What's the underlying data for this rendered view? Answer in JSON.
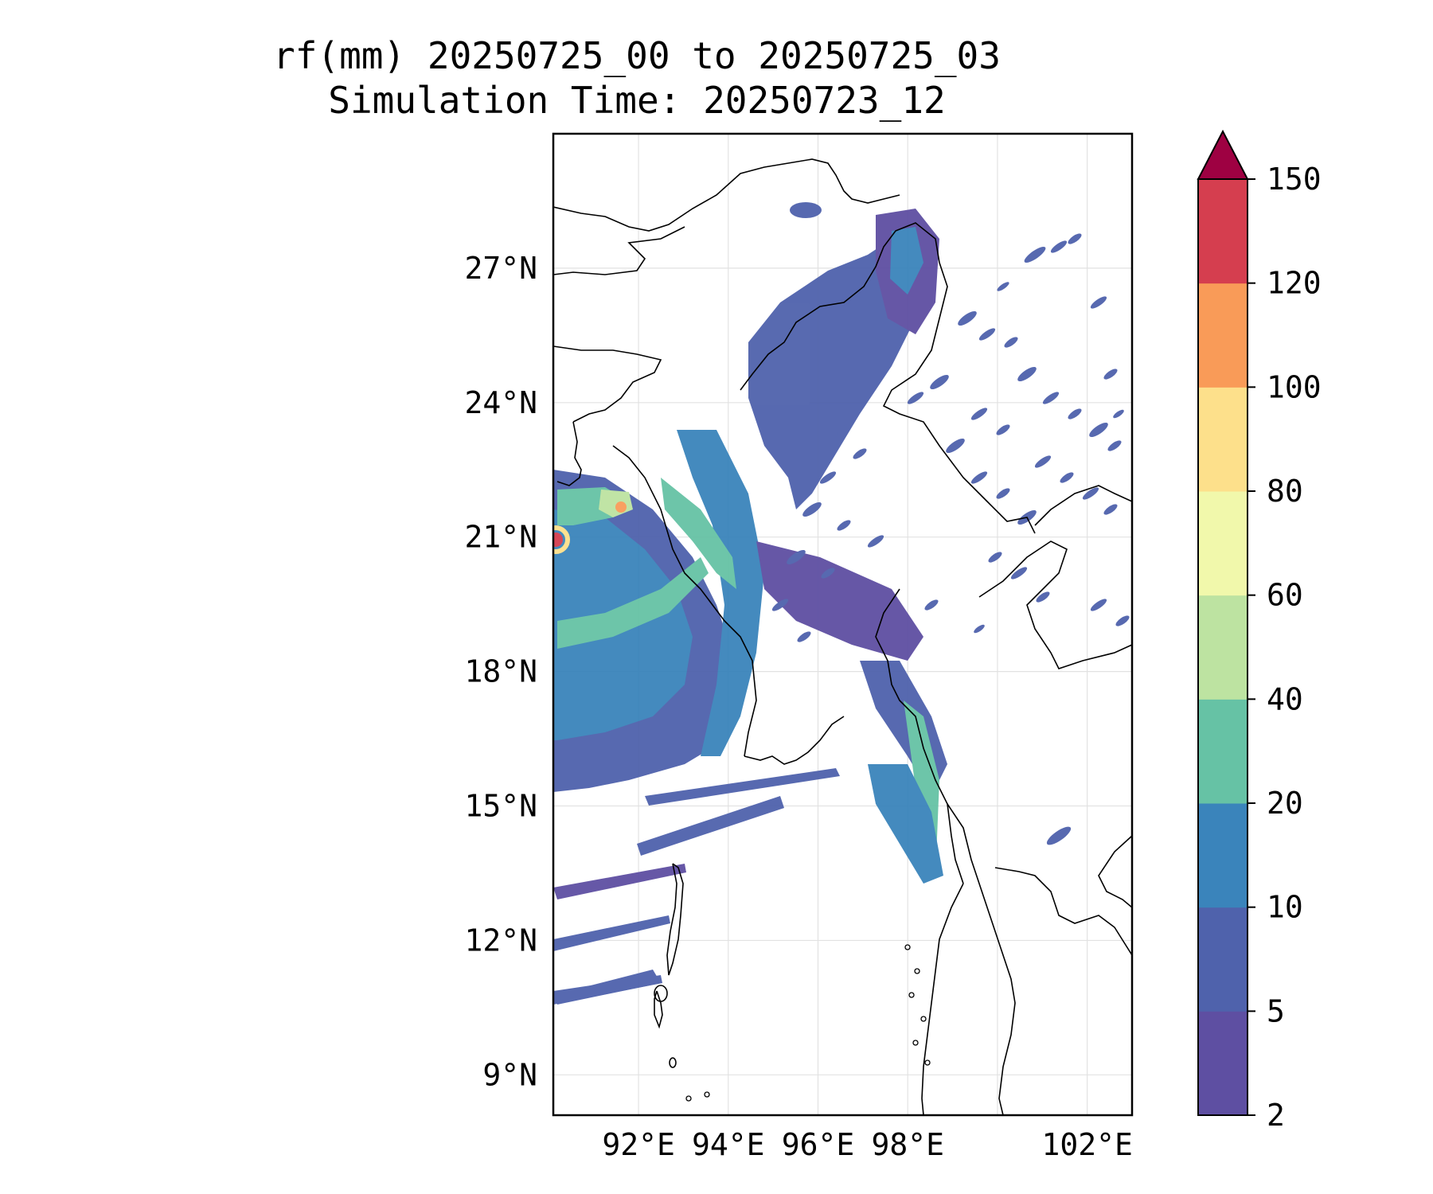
{
  "title": {
    "line1": "rf(mm) 20250725_00 to 20250725_03",
    "line2": "Simulation Time: 20250723_12"
  },
  "map": {
    "lat_labels": [
      "27°N",
      "24°N",
      "21°N",
      "18°N",
      "15°N",
      "12°N",
      "9°N"
    ],
    "lon_labels": [
      "92°E",
      "94°E",
      "96°E",
      "98°E",
      "102°E"
    ],
    "lat_values": [
      27,
      24,
      21,
      18,
      15,
      12,
      9
    ],
    "lon_values": [
      92,
      94,
      96,
      98,
      102
    ],
    "lon_range": [
      90.1,
      103.0
    ],
    "lat_range": [
      8.1,
      30.0
    ],
    "grid": true
  },
  "colorbar": {
    "levels": [
      "2",
      "5",
      "10",
      "20",
      "40",
      "60",
      "80",
      "100",
      "120",
      "150"
    ],
    "colors": [
      "#5e4fa2",
      "#4f62ac",
      "#3a84bb",
      "#66c2a5",
      "#bde3a1",
      "#f1f8ab",
      "#fde08b",
      "#f99b58",
      "#d53e4f",
      "#9e0142"
    ],
    "extend": "max",
    "extend_color": "#9e0142"
  }
}
